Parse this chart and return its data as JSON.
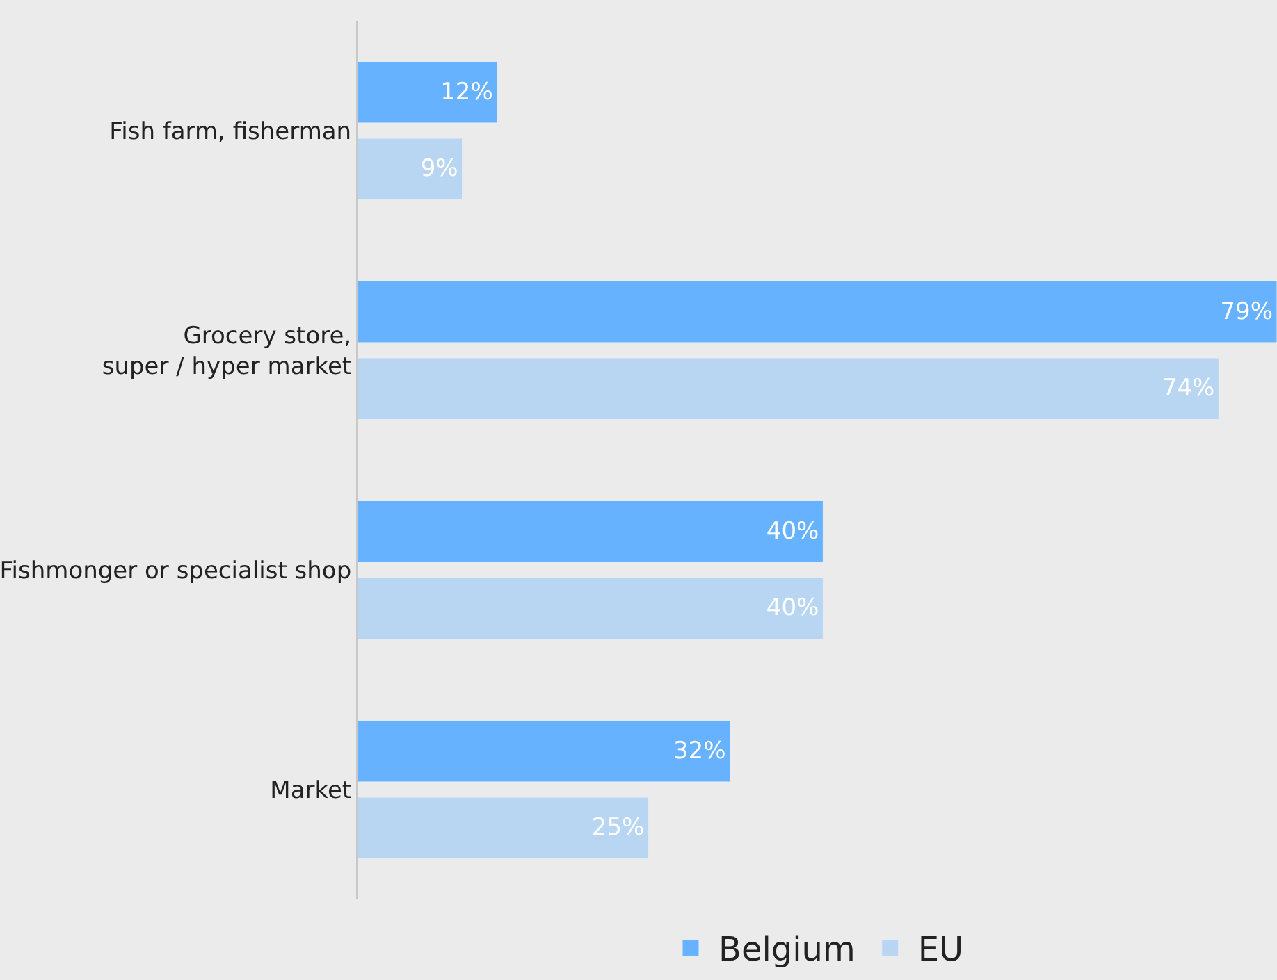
{
  "chart_data": {
    "type": "bar",
    "orientation": "horizontal",
    "categories": [
      "Fish farm, fisherman",
      "Grocery store,\nsuper / hyper market",
      "Fishmonger or specialist shop",
      "Market"
    ],
    "series": [
      {
        "name": "Belgium",
        "color": "#66b2ff",
        "values": [
          12,
          79,
          40,
          32
        ],
        "value_labels": [
          "12%",
          "79%",
          "40%",
          "32%"
        ]
      },
      {
        "name": "EU",
        "color": "#b8d6f2",
        "values": [
          9,
          74,
          40,
          25
        ],
        "value_labels": [
          "9%",
          "74%",
          "40%",
          "25%"
        ]
      }
    ],
    "legend": "bottom",
    "grid": false
  }
}
